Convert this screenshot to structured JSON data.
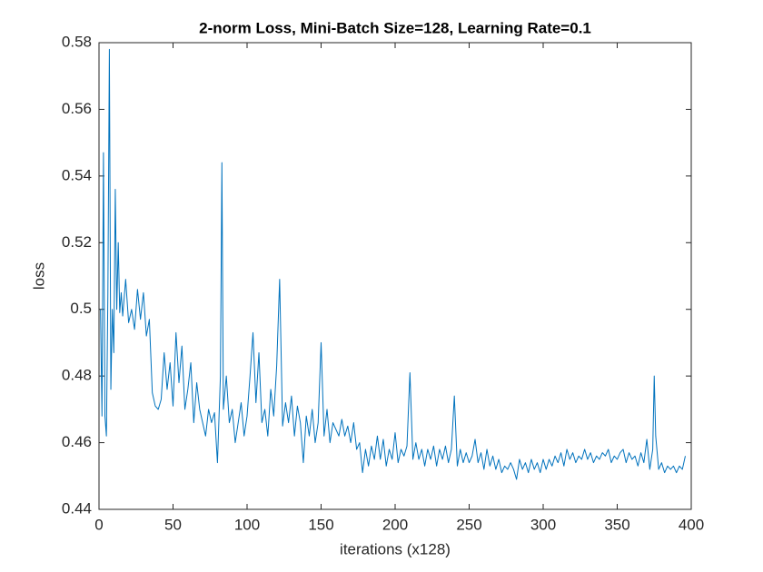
{
  "chart_data": {
    "type": "line",
    "title": "2-norm Loss, Mini-Batch Size=128, Learning Rate=0.1",
    "xlabel": "iterations (x128)",
    "ylabel": "loss",
    "color": "#0072bd",
    "xlim": [
      0,
      400
    ],
    "xticks": [
      0,
      50,
      100,
      150,
      200,
      250,
      300,
      350,
      400
    ],
    "ylim": [
      0.44,
      0.58
    ],
    "yticks": [
      0.44,
      0.46,
      0.48,
      0.5,
      0.52,
      0.54,
      0.56,
      0.58
    ],
    "x": [
      1,
      2,
      3,
      4,
      5,
      6,
      7,
      8,
      9,
      10,
      11,
      12,
      13,
      14,
      15,
      16,
      18,
      20,
      22,
      24,
      26,
      28,
      30,
      32,
      34,
      36,
      38,
      40,
      42,
      44,
      46,
      48,
      50,
      52,
      54,
      56,
      58,
      60,
      62,
      64,
      66,
      68,
      70,
      72,
      74,
      76,
      78,
      80,
      82,
      83,
      84,
      86,
      88,
      90,
      92,
      94,
      96,
      98,
      100,
      102,
      104,
      106,
      108,
      110,
      112,
      114,
      116,
      118,
      120,
      122,
      124,
      126,
      128,
      130,
      132,
      134,
      136,
      138,
      140,
      142,
      144,
      146,
      148,
      150,
      152,
      154,
      156,
      158,
      160,
      162,
      164,
      166,
      168,
      170,
      172,
      174,
      176,
      178,
      180,
      182,
      184,
      186,
      188,
      190,
      192,
      194,
      196,
      198,
      200,
      202,
      204,
      206,
      208,
      210,
      212,
      214,
      216,
      218,
      220,
      222,
      224,
      226,
      228,
      230,
      232,
      234,
      236,
      238,
      240,
      242,
      244,
      246,
      248,
      250,
      252,
      254,
      256,
      258,
      260,
      262,
      264,
      266,
      268,
      270,
      272,
      274,
      276,
      278,
      280,
      282,
      284,
      286,
      288,
      290,
      292,
      294,
      296,
      298,
      300,
      302,
      304,
      306,
      308,
      310,
      312,
      314,
      316,
      318,
      320,
      322,
      324,
      326,
      328,
      330,
      332,
      334,
      336,
      338,
      340,
      342,
      344,
      346,
      348,
      350,
      352,
      354,
      356,
      358,
      360,
      362,
      364,
      366,
      368,
      370,
      372,
      374,
      375,
      376,
      378,
      380,
      382,
      384,
      386,
      388,
      390,
      392,
      394,
      396
    ],
    "values": [
      0.5,
      0.468,
      0.547,
      0.468,
      0.462,
      0.505,
      0.578,
      0.476,
      0.5,
      0.487,
      0.536,
      0.5,
      0.52,
      0.499,
      0.505,
      0.498,
      0.509,
      0.496,
      0.5,
      0.494,
      0.506,
      0.497,
      0.505,
      0.492,
      0.497,
      0.475,
      0.471,
      0.47,
      0.473,
      0.487,
      0.476,
      0.484,
      0.471,
      0.493,
      0.478,
      0.489,
      0.47,
      0.476,
      0.484,
      0.466,
      0.478,
      0.47,
      0.466,
      0.462,
      0.47,
      0.466,
      0.469,
      0.454,
      0.48,
      0.544,
      0.47,
      0.48,
      0.466,
      0.47,
      0.46,
      0.466,
      0.472,
      0.462,
      0.468,
      0.48,
      0.493,
      0.472,
      0.487,
      0.466,
      0.47,
      0.462,
      0.476,
      0.468,
      0.483,
      0.509,
      0.465,
      0.472,
      0.466,
      0.474,
      0.462,
      0.471,
      0.466,
      0.454,
      0.468,
      0.462,
      0.47,
      0.46,
      0.466,
      0.49,
      0.462,
      0.47,
      0.46,
      0.466,
      0.464,
      0.462,
      0.467,
      0.462,
      0.465,
      0.46,
      0.466,
      0.458,
      0.46,
      0.451,
      0.458,
      0.453,
      0.459,
      0.455,
      0.462,
      0.455,
      0.461,
      0.453,
      0.458,
      0.455,
      0.463,
      0.454,
      0.458,
      0.456,
      0.459,
      0.481,
      0.455,
      0.46,
      0.455,
      0.458,
      0.453,
      0.458,
      0.455,
      0.459,
      0.453,
      0.458,
      0.455,
      0.459,
      0.454,
      0.458,
      0.474,
      0.453,
      0.458,
      0.454,
      0.457,
      0.454,
      0.456,
      0.461,
      0.454,
      0.457,
      0.452,
      0.458,
      0.453,
      0.456,
      0.452,
      0.455,
      0.451,
      0.453,
      0.452,
      0.454,
      0.452,
      0.449,
      0.455,
      0.452,
      0.454,
      0.451,
      0.455,
      0.452,
      0.454,
      0.451,
      0.455,
      0.452,
      0.455,
      0.453,
      0.456,
      0.454,
      0.457,
      0.453,
      0.458,
      0.455,
      0.457,
      0.454,
      0.456,
      0.455,
      0.458,
      0.455,
      0.457,
      0.454,
      0.456,
      0.455,
      0.457,
      0.456,
      0.458,
      0.454,
      0.456,
      0.455,
      0.457,
      0.458,
      0.454,
      0.457,
      0.455,
      0.456,
      0.453,
      0.457,
      0.454,
      0.461,
      0.452,
      0.458,
      0.48,
      0.462,
      0.452,
      0.454,
      0.451,
      0.453,
      0.452,
      0.453,
      0.451,
      0.453,
      0.452,
      0.456
    ]
  }
}
